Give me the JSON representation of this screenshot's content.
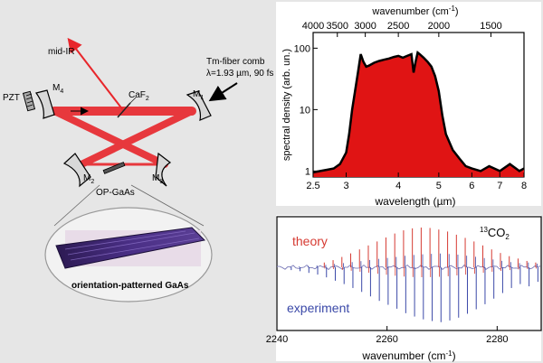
{
  "setup": {
    "output_label": "mid-IR",
    "pzt_label": "PZT",
    "mirror_labels": {
      "m1": "M",
      "m2": "M",
      "m3": "M",
      "m4": "M"
    },
    "mirror_subs": {
      "m1": "1",
      "m2": "2",
      "m3": "3",
      "m4": "4"
    },
    "caf2_main": "CaF",
    "caf2_sub": "2",
    "pump_line1": "Tm-fiber comb",
    "pump_line2": "λ=1.93 µm, 90 fs",
    "crystal_label": "OP-GaAs",
    "inset_caption": "orientation-patterned GaAs",
    "beam_color": "#e8262b"
  },
  "chart_data": [
    {
      "type": "area",
      "scale": "log-log",
      "xlabel_main": "wavelength (",
      "xlabel_unit": "µm",
      "xlabel_end": ")",
      "top_label": "wavenumber  (cm",
      "top_label_sup": "-1",
      "top_label_end": ")",
      "ylabel": "spectral density (arb. un.)",
      "xlim": [
        2.5,
        8
      ],
      "ylim": [
        0.8,
        180
      ],
      "x_ticks": [
        "2.5",
        "3",
        "4",
        "5",
        "6",
        "7",
        "8"
      ],
      "x_tick_values": [
        2.5,
        3,
        4,
        5,
        6,
        7,
        8
      ],
      "y_ticks": [
        "1",
        "10",
        "100"
      ],
      "y_tick_values": [
        1,
        10,
        100
      ],
      "top_ticks": [
        "4000",
        "3500",
        "3000",
        "2500",
        "2000",
        "1500"
      ],
      "top_tick_values": [
        4000,
        3500,
        3000,
        2500,
        2000,
        1500
      ],
      "fill_color": "#e01414",
      "series": [
        {
          "x": [
            2.5,
            2.6,
            2.7,
            2.8,
            2.9,
            3.0,
            3.05,
            3.1,
            3.15,
            3.2,
            3.25,
            3.3,
            3.35,
            3.4,
            3.5,
            3.6,
            3.7,
            3.8,
            3.9,
            4.0,
            4.1,
            4.2,
            4.3,
            4.35,
            4.4,
            4.45,
            4.5,
            4.6,
            4.7,
            4.8,
            4.9,
            5.0,
            5.1,
            5.2,
            5.4,
            5.6,
            5.8,
            6.0,
            6.3,
            6.6,
            7.0,
            7.4,
            7.8,
            8.0
          ],
          "y": [
            0.95,
            1.0,
            1.05,
            1.1,
            1.3,
            2.0,
            4.0,
            10,
            20,
            40,
            80,
            60,
            50,
            52,
            58,
            62,
            65,
            68,
            72,
            75,
            70,
            75,
            80,
            40,
            60,
            85,
            80,
            70,
            60,
            50,
            35,
            20,
            8,
            4,
            2.2,
            1.6,
            1.2,
            1.1,
            1.0,
            1.2,
            1.0,
            1.3,
            1.0,
            1.1
          ]
        }
      ]
    },
    {
      "type": "line",
      "label_theory": "theory",
      "label_experiment": "experiment",
      "molecule_sup": "13",
      "molecule_main": "CO",
      "molecule_sub": "2",
      "xlabel": "wavenumber (cm",
      "xlabel_sup": "-1",
      "xlabel_end": ")",
      "x_ticks": [
        "2240",
        "2260",
        "2280"
      ],
      "x_tick_values": [
        2240,
        2260,
        2280
      ],
      "xlim": [
        2240,
        2288
      ],
      "series": [
        {
          "name": "theory",
          "color": "#d63a32",
          "x": [
            2248.6,
            2250.2,
            2251.8,
            2253.4,
            2255.0,
            2256.6,
            2258.2,
            2259.8,
            2261.4,
            2263.0,
            2264.6,
            2266.2,
            2267.8,
            2269.4,
            2271.0,
            2272.6,
            2274.2,
            2275.8,
            2277.4,
            2279.0,
            2280.6,
            2282.2,
            2283.8,
            2285.4,
            2287.0
          ],
          "y": [
            0.12,
            0.18,
            0.26,
            0.35,
            0.45,
            0.55,
            0.65,
            0.75,
            0.85,
            0.93,
            0.98,
            1.0,
            0.99,
            0.95,
            0.9,
            0.82,
            0.74,
            0.65,
            0.55,
            0.45,
            0.36,
            0.28,
            0.22,
            0.16,
            0.12
          ]
        },
        {
          "name": "experiment",
          "color": "#3b49a8",
          "x": [
            2242.6,
            2244.2,
            2245.8,
            2247.4,
            2249.0,
            2250.6,
            2252.2,
            2253.8,
            2255.4,
            2257.0,
            2258.6,
            2260.2,
            2261.8,
            2263.4,
            2265.0,
            2266.6,
            2268.2,
            2269.8,
            2271.4,
            2273.0,
            2274.6,
            2276.2,
            2277.8,
            2279.4,
            2281.0,
            2282.6,
            2284.2,
            2285.8,
            2287.4
          ],
          "y": [
            0.05,
            0.07,
            0.1,
            0.13,
            0.18,
            0.24,
            0.3,
            0.37,
            0.44,
            0.52,
            0.6,
            0.67,
            0.74,
            0.82,
            0.88,
            0.93,
            0.96,
            0.98,
            0.95,
            0.9,
            0.83,
            0.75,
            0.66,
            0.56,
            0.46,
            0.37,
            0.3,
            0.34,
            0.26
          ]
        }
      ]
    }
  ]
}
